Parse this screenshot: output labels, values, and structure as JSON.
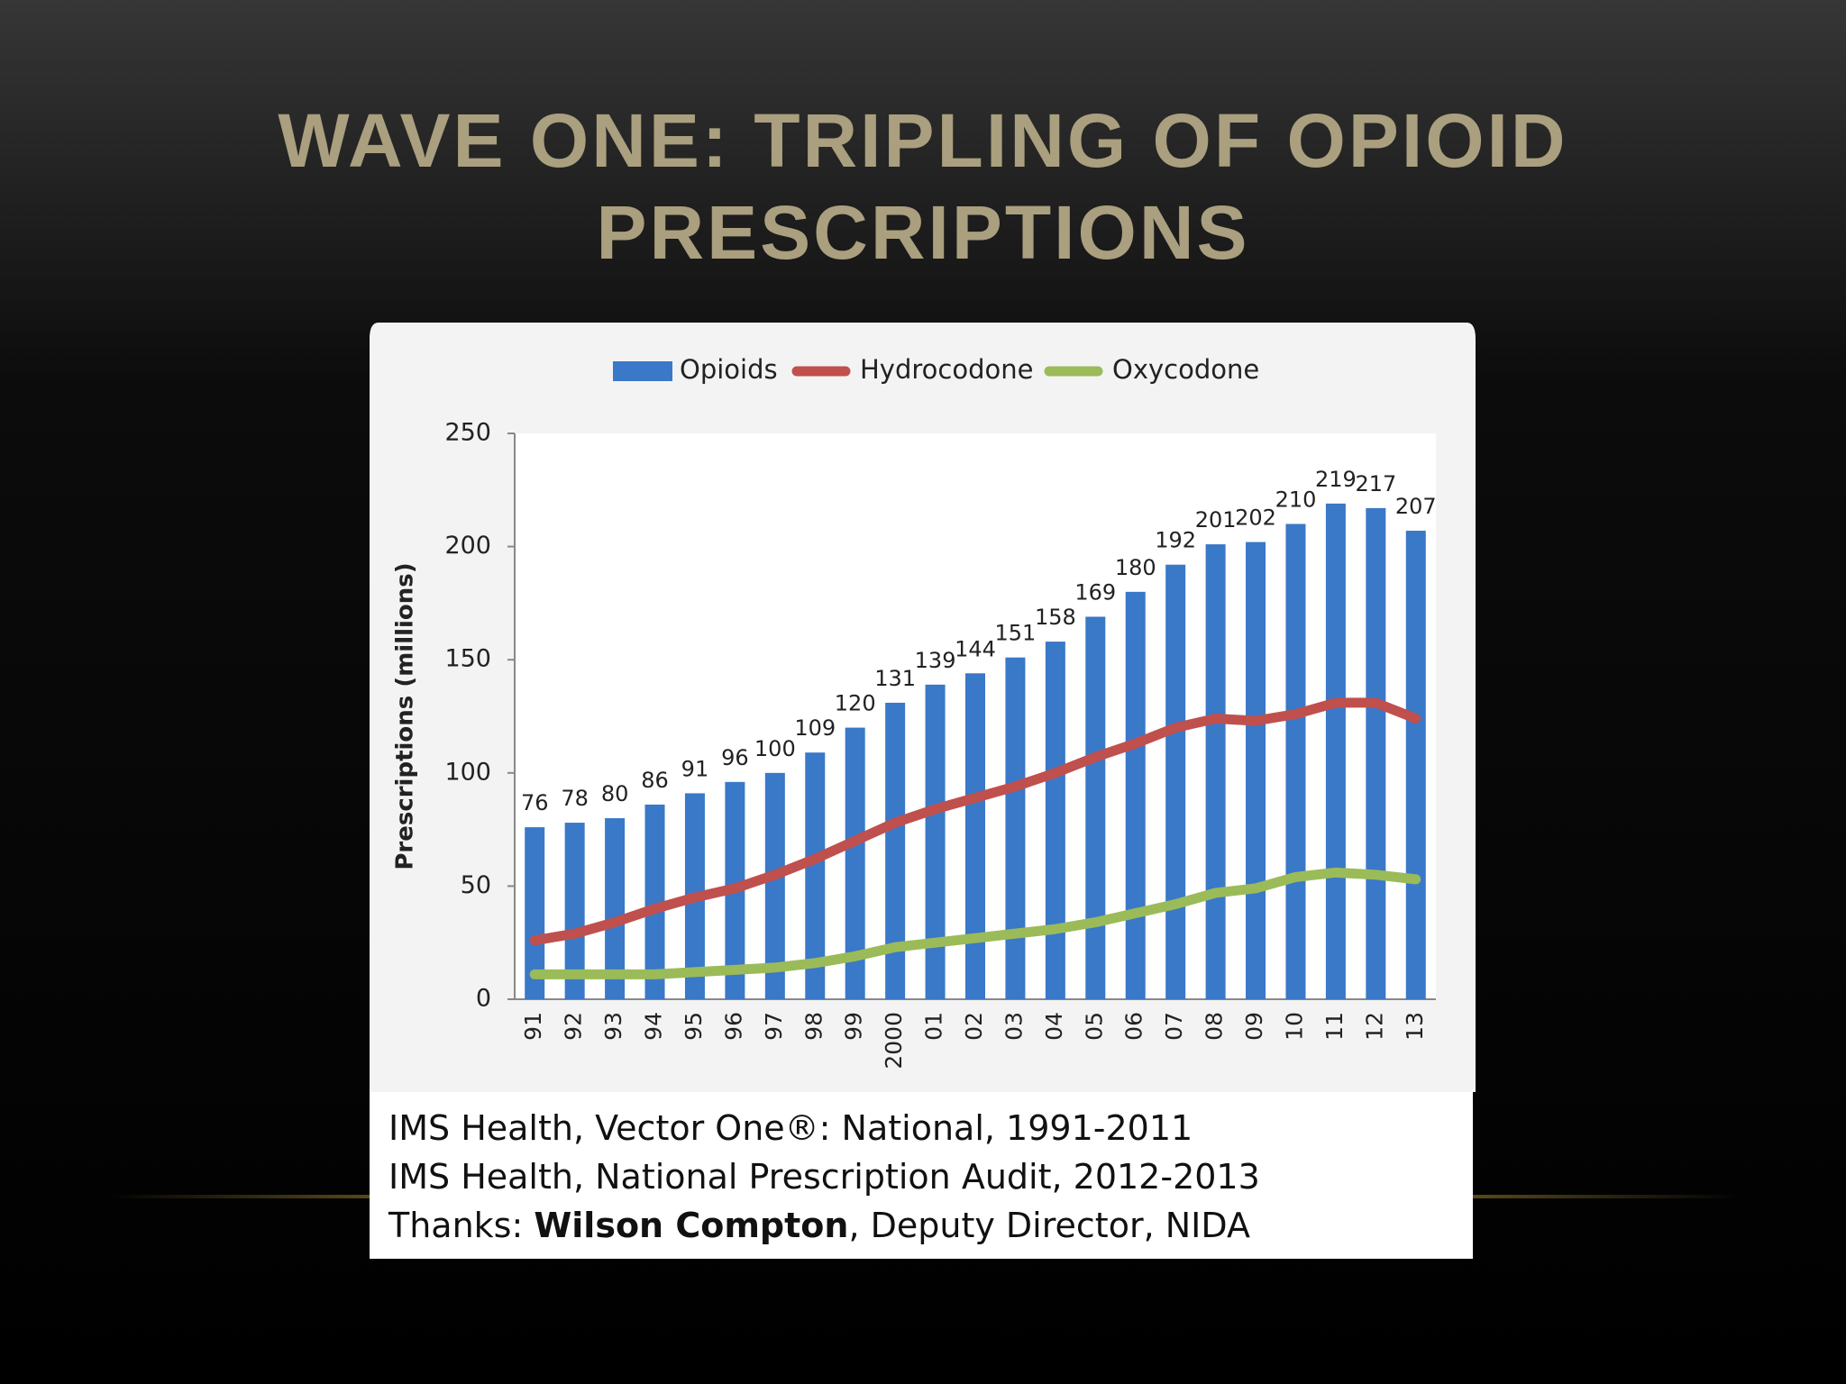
{
  "title": [
    "WAVE ONE: TRIPLING OF OPIOID",
    "PRESCRIPTIONS"
  ],
  "chart_data": {
    "type": "bar",
    "y_label": "Prescriptions (millions)",
    "categories": [
      "91",
      "92",
      "93",
      "94",
      "95",
      "96",
      "97",
      "98",
      "99",
      "2000",
      "01",
      "02",
      "03",
      "04",
      "05",
      "06",
      "07",
      "08",
      "09",
      "10",
      "11",
      "12",
      "13"
    ],
    "series": [
      {
        "name": "Opioids",
        "type": "bar",
        "color": "#3a78c8",
        "show_labels": true,
        "values": [
          76,
          78,
          80,
          86,
          91,
          96,
          100,
          109,
          120,
          131,
          139,
          144,
          151,
          158,
          169,
          180,
          192,
          201,
          202,
          210,
          219,
          217,
          207
        ]
      },
      {
        "name": "Hydrocodone",
        "type": "line",
        "color": "#c0504d",
        "values": [
          26,
          29,
          34,
          40,
          45,
          49,
          55,
          62,
          70,
          78,
          84,
          89,
          94,
          100,
          107,
          113,
          120,
          124,
          123,
          126,
          131,
          131,
          124
        ]
      },
      {
        "name": "Oxycodone",
        "type": "line",
        "color": "#9bbb59",
        "values": [
          11,
          11,
          11,
          11,
          12,
          13,
          14,
          16,
          19,
          23,
          25,
          27,
          29,
          31,
          34,
          38,
          42,
          47,
          49,
          54,
          56,
          55,
          53
        ]
      }
    ],
    "ylim": [
      0,
      250
    ],
    "yticks": [
      0,
      50,
      100,
      150,
      200,
      250
    ],
    "legend": "top"
  },
  "source": {
    "line1": "IMS Health, Vector One®: National, 1991-2011",
    "line2": "IMS Health, National Prescription Audit, 2012-2013",
    "line3": [
      "Thanks: ",
      "Wilson Compton",
      ", Deputy Director, NIDA"
    ]
  }
}
